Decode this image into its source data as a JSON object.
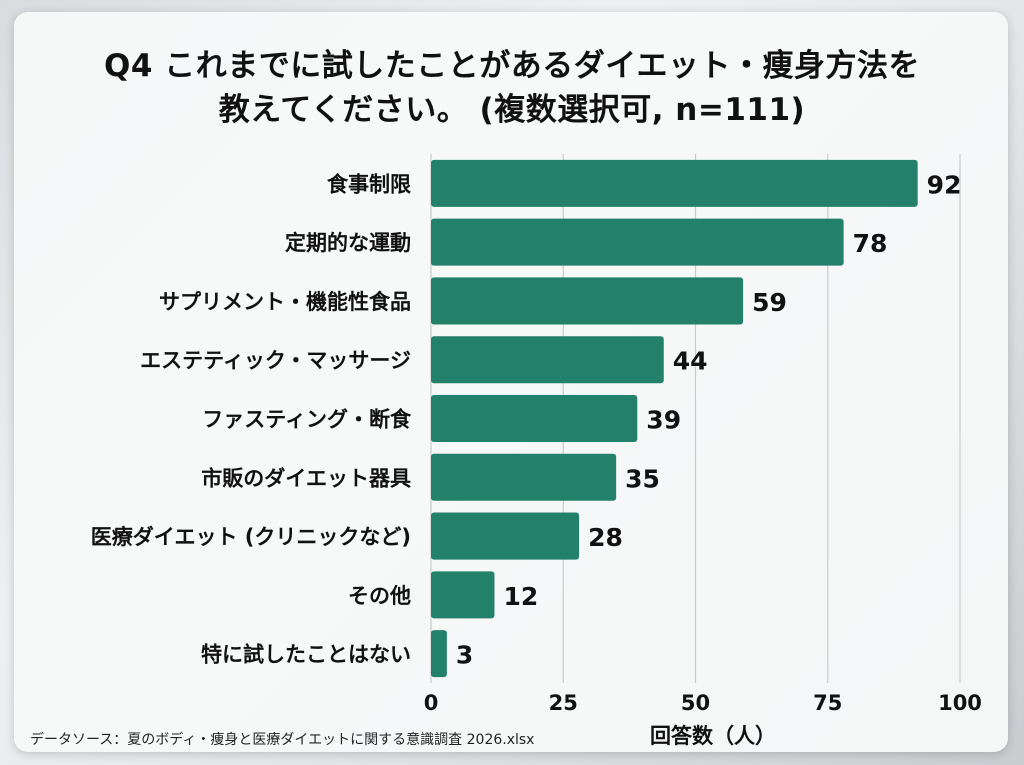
{
  "colors": {
    "bar": "#22806b",
    "grid": "#c9ccce",
    "text": "#111111"
  },
  "title_lines": [
    "Q4 これまでに試したことがあるダイエット・痩身方法を",
    "教えてください。 (複数選択可, n=111)"
  ],
  "source": "データソース：夏のボディ・痩身と医療ダイエットに関する意識調査 2026.xlsx",
  "chart_data": {
    "type": "bar",
    "orientation": "horizontal",
    "title": "Q4 これまでに試したことがあるダイエット・痩身方法を 教えてください。 (複数選択可, n=111)",
    "categories": [
      "食事制限",
      "定期的な運動",
      "サプリメント・機能性食品",
      "エステティック・マッサージ",
      "ファスティング・断食",
      "市販のダイエット器具",
      "医療ダイエット (クリニックなど)",
      "その他",
      "特に試したことはない"
    ],
    "values": [
      92,
      78,
      59,
      44,
      39,
      35,
      28,
      12,
      3
    ],
    "xlabel": "回答数（人）",
    "ylabel": "",
    "xlim": [
      0,
      100
    ],
    "xticks": [
      "0",
      "25",
      "50",
      "75",
      "100"
    ],
    "grid": "vertical",
    "data_labels": true
  }
}
